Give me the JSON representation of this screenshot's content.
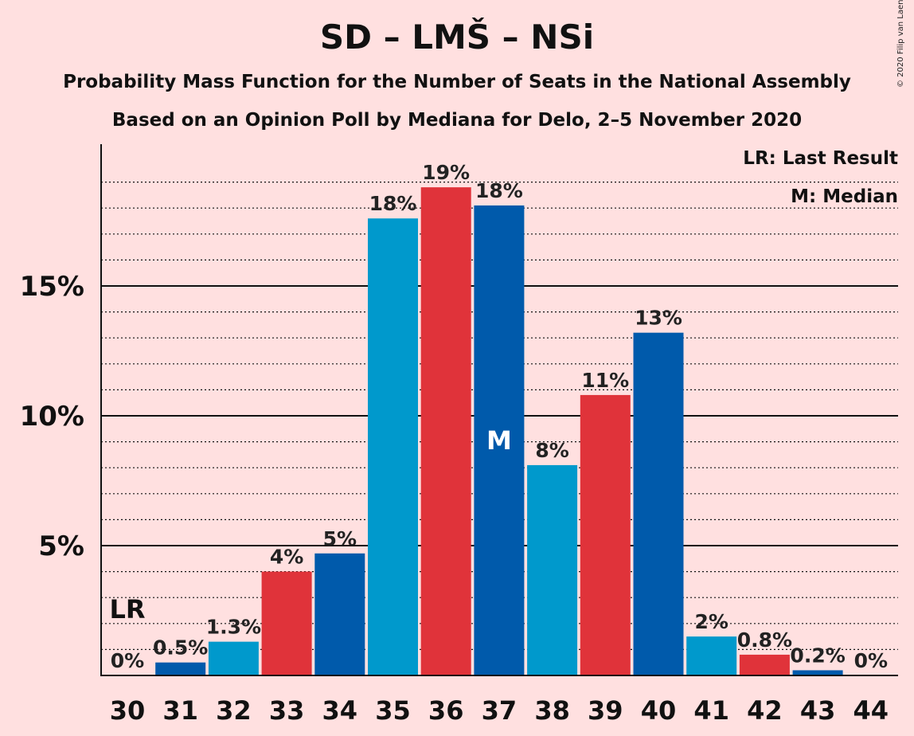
{
  "title": "SD – LMŠ – NSi",
  "subtitle1": "Probability Mass Function for the Number of Seats in the National Assembly",
  "subtitle2": "Based on an Opinion Poll by Mediana for Delo, 2–5 November 2020",
  "copyright": "© 2020 Filip van Laenen",
  "legend": {
    "lr": "LR: Last Result",
    "median": "M: Median"
  },
  "chart_data": {
    "type": "bar",
    "categories": [
      "30",
      "31",
      "32",
      "33",
      "34",
      "35",
      "36",
      "37",
      "38",
      "39",
      "40",
      "41",
      "42",
      "43",
      "44"
    ],
    "values": [
      0,
      0.5,
      1.3,
      4.0,
      4.7,
      17.6,
      18.8,
      18.1,
      8.1,
      10.8,
      13.2,
      1.5,
      0.8,
      0.2,
      0
    ],
    "labels": [
      "0%",
      "0.5%",
      "1.3%",
      "4%",
      "5%",
      "18%",
      "19%",
      "18%",
      "8%",
      "11%",
      "13%",
      "2%",
      "0.8%",
      "0.2%",
      "0%"
    ],
    "colors": [
      "#0099cc",
      "#005aab",
      "#0099cc",
      "#e0333a",
      "#005aab",
      "#0099cc",
      "#e0333a",
      "#005aab",
      "#0099cc",
      "#e0333a",
      "#005aab",
      "#0099cc",
      "#e0333a",
      "#005aab",
      "#0099cc"
    ],
    "ylim": [
      0,
      20
    ],
    "yticks": [
      5,
      10,
      15
    ],
    "ytick_labels": [
      "5%",
      "10%",
      "15%"
    ],
    "last_result_seat": "30",
    "last_result_label": "LR",
    "median_seat": "37",
    "median_label": "M",
    "grid": "major solid at 5% steps, dotted minor at 1% steps"
  }
}
